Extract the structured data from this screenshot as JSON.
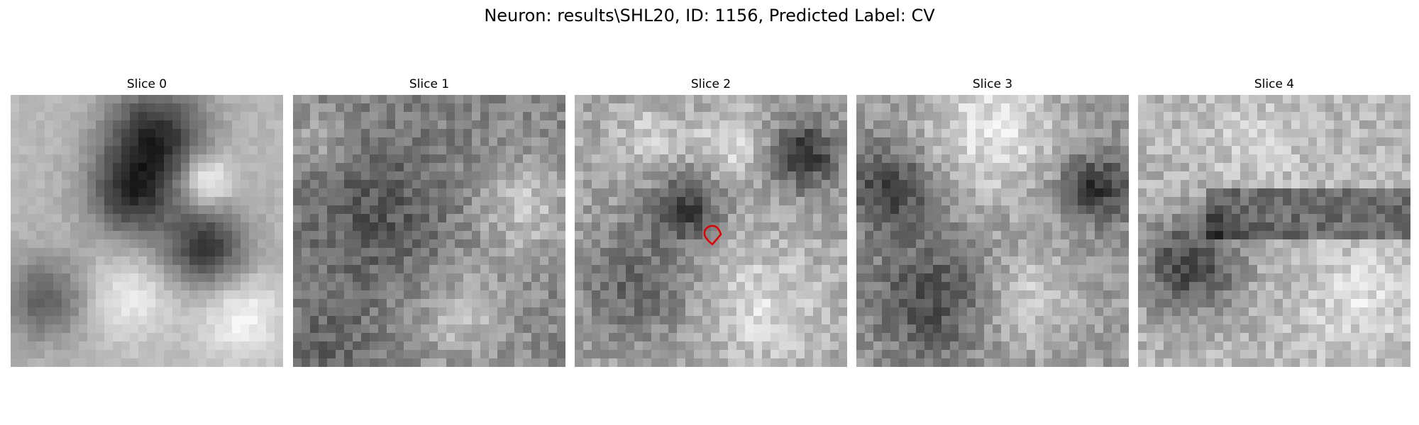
{
  "figure": {
    "title": "Neuron: results\\SHL20, ID: 1156, Predicted Label: CV"
  },
  "slices": [
    {
      "title": "Slice 0"
    },
    {
      "title": "Slice 1"
    },
    {
      "title": "Slice 2"
    },
    {
      "title": "Slice 3"
    },
    {
      "title": "Slice 4"
    }
  ],
  "marker": {
    "color": "#e00000"
  }
}
